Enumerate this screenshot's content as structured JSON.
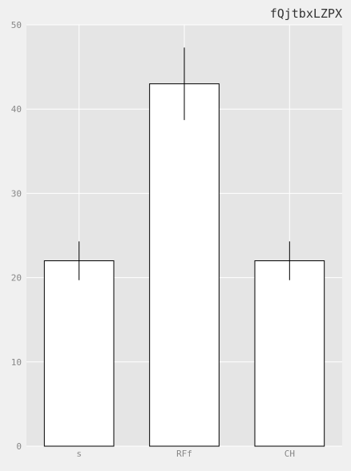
{
  "chart_data": {
    "type": "bar",
    "title": "fQjtbxLZPX",
    "categories": [
      "s",
      "RFf",
      "CH"
    ],
    "values": [
      22,
      43,
      22
    ],
    "errors": [
      2.3,
      4.3,
      2.3
    ],
    "ylim": [
      0,
      50
    ],
    "yticks": [
      0,
      10,
      20,
      30,
      40,
      50
    ],
    "grid": true,
    "colors": {
      "figure_bg": "#f0f0f0",
      "plot_bg": "#e5e5e5",
      "grid": "#ffffff",
      "bar_fill": "#ffffff",
      "bar_edge": "#000000",
      "error_bar": "#000000",
      "tick_label": "#888888",
      "title": "#333333"
    }
  }
}
